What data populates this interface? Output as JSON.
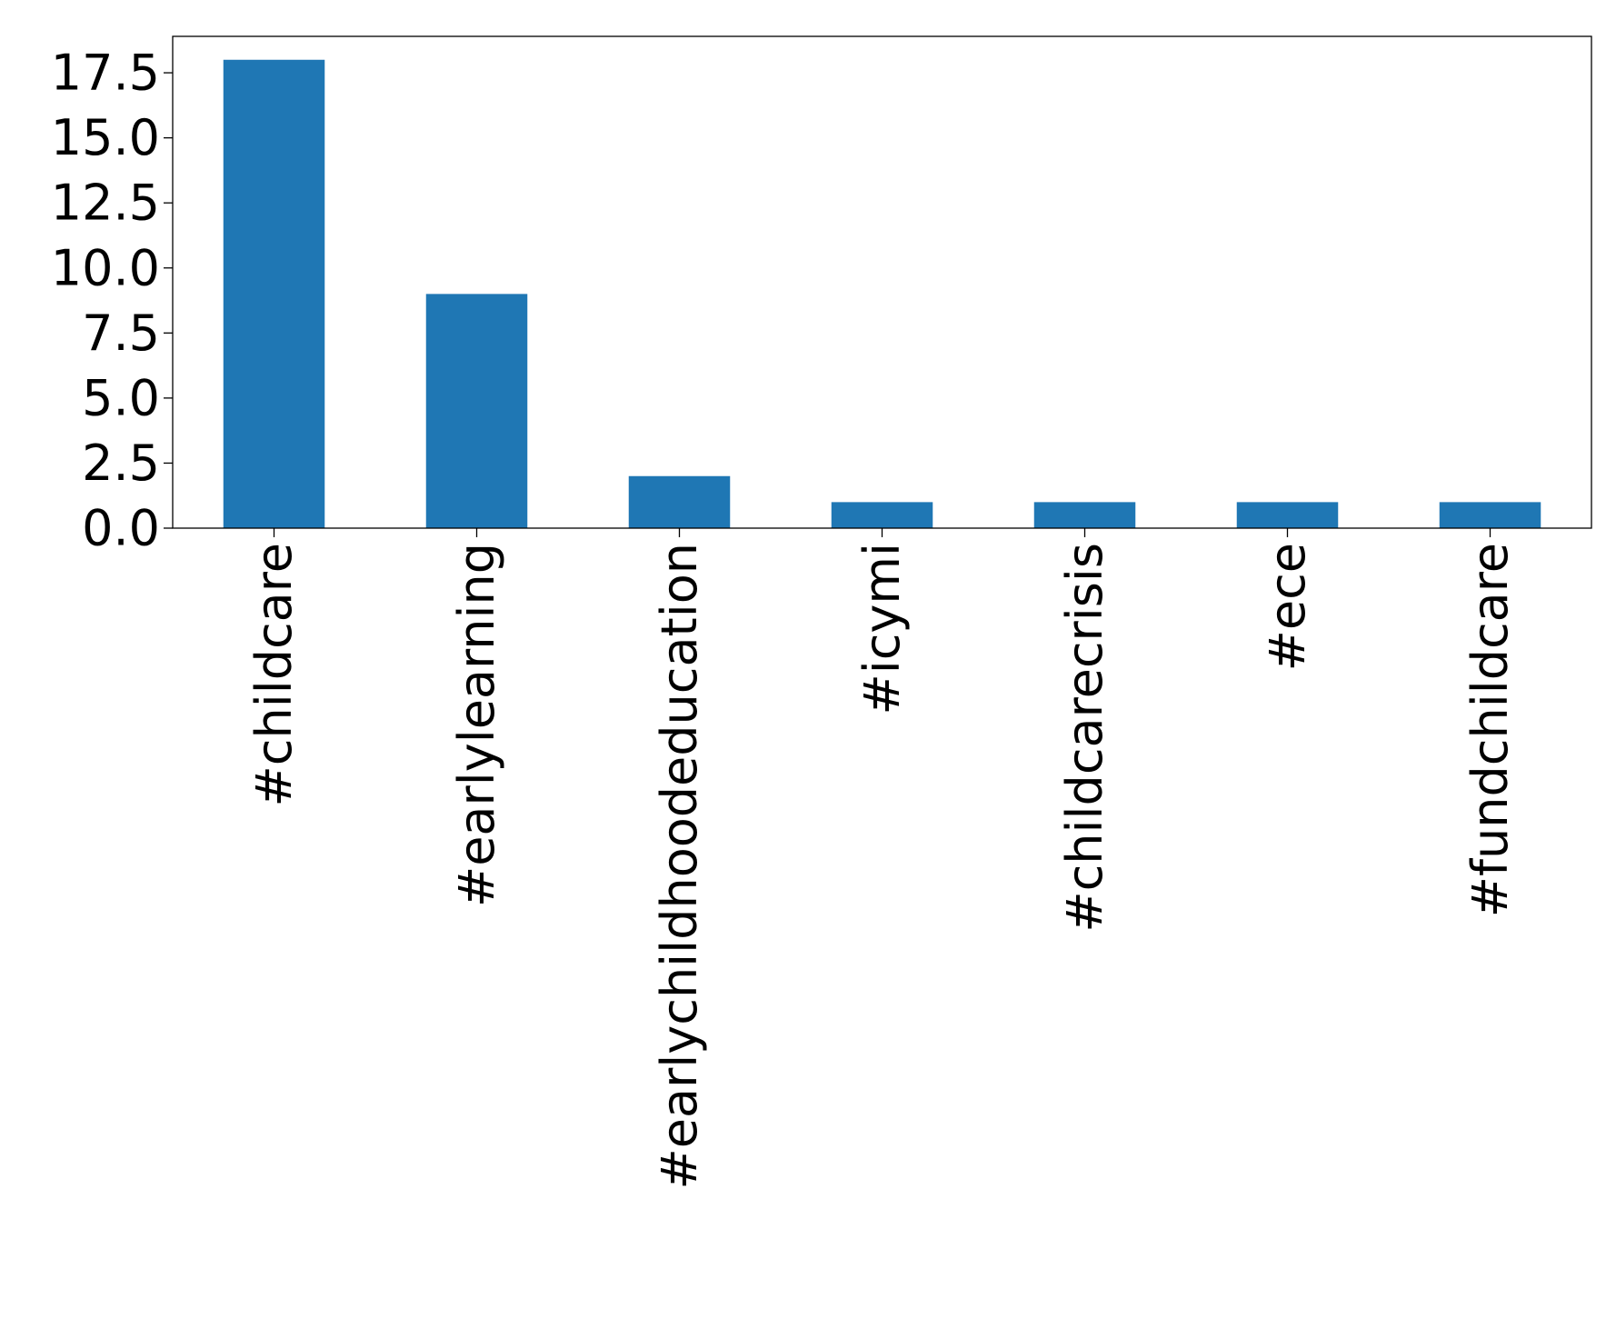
{
  "chart_data": {
    "type": "bar",
    "title": "",
    "xlabel": "",
    "ylabel": "",
    "categories": [
      "#childcare",
      "#earlylearning",
      "#earlychildhoodeducation",
      "#icymi",
      "#childcarecrisis",
      "#ece",
      "#fundchildcare"
    ],
    "values": [
      18,
      9,
      2,
      1,
      1,
      1,
      1
    ],
    "ylim": [
      0,
      18.9
    ],
    "yticks": [
      0.0,
      2.5,
      5.0,
      7.5,
      10.0,
      12.5,
      15.0,
      17.5
    ],
    "ytick_labels": [
      "0.0",
      "2.5",
      "5.0",
      "7.5",
      "10.0",
      "12.5",
      "15.0",
      "17.5"
    ],
    "bar_color": "#1f77b4",
    "grid": false,
    "legend": "none"
  }
}
